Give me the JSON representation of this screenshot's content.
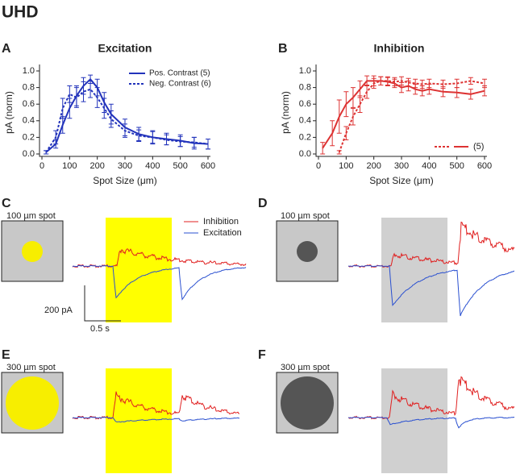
{
  "figure_title": "UHD",
  "chart_data": [
    {
      "type": "line",
      "letter": "A",
      "title": "Excitation",
      "xlabel": "Spot Size (μm)",
      "ylabel": "pA (norm)",
      "xlim": [
        0,
        600
      ],
      "xticks": [
        0,
        100,
        200,
        300,
        400,
        500,
        600
      ],
      "ylim": [
        0,
        1
      ],
      "yticks": [
        {
          "value": 0,
          "label": "0.0"
        },
        0.2,
        0.4,
        0.6,
        0.8,
        {
          "value": 1,
          "label": "1.0"
        }
      ],
      "x": [
        15,
        50,
        75,
        100,
        125,
        150,
        175,
        200,
        225,
        250,
        300,
        350,
        400,
        450,
        500,
        550,
        600
      ],
      "legend": "upper right",
      "series": [
        {
          "name": "Pos. Contrast (5)",
          "color": "#2233bb",
          "dash": false,
          "values": [
            0.02,
            0.12,
            0.35,
            0.55,
            0.7,
            0.82,
            0.9,
            0.8,
            0.62,
            0.48,
            0.32,
            0.24,
            0.2,
            0.18,
            0.16,
            0.13,
            0.12
          ],
          "errors": [
            0.02,
            0.05,
            0.1,
            0.12,
            0.12,
            0.1,
            0.05,
            0.1,
            0.12,
            0.12,
            0.1,
            0.08,
            0.08,
            0.07,
            0.07,
            0.07,
            0.06
          ]
        },
        {
          "name": "Neg. Contrast (6)",
          "color": "#2233bb",
          "dash": true,
          "values": [
            0.02,
            0.2,
            0.55,
            0.72,
            0.68,
            0.75,
            0.78,
            0.68,
            0.55,
            0.42,
            0.28,
            0.22,
            0.2,
            0.17,
            0.15,
            0.14,
            0.12
          ],
          "errors": [
            0.02,
            0.08,
            0.12,
            0.1,
            0.12,
            0.12,
            0.1,
            0.12,
            0.12,
            0.1,
            0.08,
            0.07,
            0.07,
            0.06,
            0.06,
            0.06,
            0.06
          ]
        }
      ]
    },
    {
      "type": "line",
      "letter": "B",
      "title": "Inhibition",
      "xlabel": "Spot Size (μm)",
      "ylabel": "pA (norm)",
      "xlim": [
        0,
        600
      ],
      "xticks": [
        0,
        100,
        200,
        300,
        400,
        500,
        600
      ],
      "ylim": [
        0,
        1
      ],
      "yticks": [
        {
          "value": 0,
          "label": "0.0"
        },
        0.2,
        0.4,
        0.6,
        0.8,
        {
          "value": 1,
          "label": "1.0"
        }
      ],
      "x": [
        15,
        50,
        75,
        100,
        125,
        150,
        175,
        200,
        225,
        250,
        275,
        300,
        325,
        350,
        375,
        400,
        450,
        500,
        550,
        600
      ],
      "legend": "lower right",
      "legend_label": "(5)",
      "series": [
        {
          "color": "#dd3333",
          "dash": true,
          "values": [
            null,
            null,
            0.02,
            0.25,
            0.45,
            0.6,
            0.75,
            0.85,
            0.88,
            0.88,
            0.87,
            0.88,
            0.86,
            0.85,
            0.84,
            0.85,
            0.84,
            0.85,
            0.88,
            0.85
          ],
          "errors": [
            null,
            null,
            0.02,
            0.08,
            0.1,
            0.1,
            0.08,
            0.06,
            0.05,
            0.05,
            0.05,
            0.05,
            0.05,
            0.05,
            0.05,
            0.05,
            0.05,
            0.05,
            0.04,
            0.05
          ]
        },
        {
          "color": "#dd3333",
          "dash": false,
          "values": [
            0.07,
            0.25,
            0.45,
            0.6,
            0.68,
            0.78,
            0.88,
            0.88,
            0.88,
            0.87,
            0.85,
            0.8,
            0.82,
            0.78,
            0.76,
            0.78,
            0.75,
            0.74,
            0.72,
            0.76
          ],
          "errors": [
            0.07,
            0.15,
            0.2,
            0.15,
            0.12,
            0.1,
            0.06,
            0.06,
            0.05,
            0.05,
            0.05,
            0.06,
            0.06,
            0.06,
            0.06,
            0.06,
            0.06,
            0.06,
            0.06,
            0.06
          ]
        }
      ]
    }
  ],
  "trace_panels": [
    {
      "letter": "C",
      "stimulus_label": "100 µm spot",
      "legend": [
        "Inhibition",
        "Excitation"
      ],
      "scale_bar": {
        "y": "200 pA",
        "x": "0.5 s"
      }
    },
    {
      "letter": "D",
      "stimulus_label": "100 µm spot"
    },
    {
      "letter": "E",
      "stimulus_label": "300 µm spot"
    },
    {
      "letter": "F",
      "stimulus_label": "300 µm spot"
    }
  ]
}
